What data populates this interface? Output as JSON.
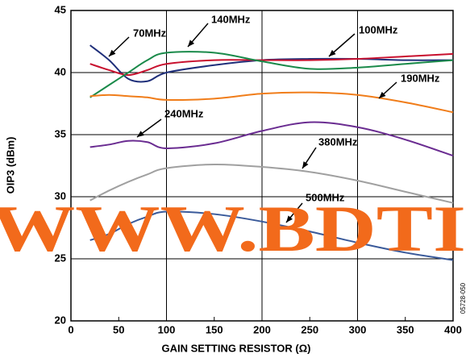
{
  "chart_data": {
    "type": "line",
    "xlabel": "GAIN SETTING RESISTOR (Ω)",
    "ylabel": "OIP3 (dBm)",
    "x": [
      20,
      40,
      60,
      80,
      100,
      150,
      200,
      250,
      300,
      350,
      400
    ],
    "series": [
      {
        "name": "70MHz",
        "color": "#1f2f7a",
        "values": [
          42.2,
          41.0,
          39.5,
          39.3,
          40.0,
          40.6,
          41.0,
          41.1,
          41.1,
          41.0,
          41.0
        ]
      },
      {
        "name": "100MHz",
        "color": "#c8102e",
        "values": [
          40.7,
          40.2,
          39.8,
          40.2,
          40.7,
          41.0,
          41.0,
          41.0,
          41.1,
          41.3,
          41.5
        ]
      },
      {
        "name": "140MHz",
        "color": "#1a8a4a",
        "values": [
          38.0,
          39.0,
          40.0,
          41.0,
          41.6,
          41.6,
          40.9,
          40.3,
          40.4,
          40.7,
          41.0
        ]
      },
      {
        "name": "190MHz",
        "color": "#f07d1a",
        "values": [
          38.1,
          38.2,
          38.1,
          38.0,
          37.8,
          37.9,
          38.3,
          38.4,
          38.2,
          37.6,
          36.8
        ]
      },
      {
        "name": "240MHz",
        "color": "#6a2c91",
        "values": [
          34.0,
          34.2,
          34.5,
          34.4,
          33.9,
          34.3,
          35.3,
          36.0,
          35.6,
          34.6,
          33.3
        ]
      },
      {
        "name": "380MHz",
        "color": "#a0a0a0",
        "values": [
          29.7,
          30.5,
          31.2,
          31.8,
          32.3,
          32.6,
          32.4,
          32.0,
          31.3,
          30.4,
          29.5
        ]
      },
      {
        "name": "500MHz",
        "color": "#3a5a9a",
        "values": [
          26.5,
          27.0,
          27.8,
          28.4,
          28.8,
          28.6,
          28.0,
          27.2,
          26.3,
          25.5,
          24.9
        ]
      }
    ],
    "xlim": [
      0,
      400
    ],
    "xticks": [
      0,
      50,
      100,
      150,
      200,
      250,
      300,
      350,
      400
    ],
    "ylim": [
      20,
      45
    ],
    "yticks": [
      20,
      25,
      30,
      35,
      40,
      45
    ],
    "grid": true,
    "watermark": "WWW.BDTI",
    "figure_id": "05728-050"
  }
}
